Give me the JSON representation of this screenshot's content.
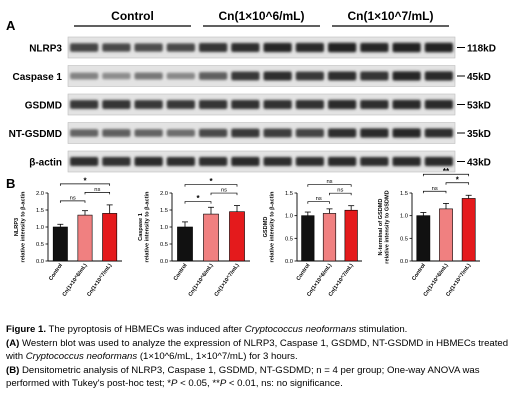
{
  "panel_a": {
    "label": "A",
    "groups": [
      "Control",
      "Cn(1×10^6/mL)",
      "Cn(1×10^7/mL)"
    ],
    "lanes_per_group": 4,
    "blots": [
      {
        "protein": "NLRP3",
        "mw": "118kD",
        "intensity": [
          0.75,
          0.72,
          0.7,
          0.72,
          0.82,
          0.85,
          0.88,
          0.86,
          0.9,
          0.88,
          0.92,
          0.9
        ]
      },
      {
        "protein": "Caspase 1",
        "mw": "45kD",
        "intensity": [
          0.45,
          0.4,
          0.5,
          0.42,
          0.62,
          0.8,
          0.85,
          0.8,
          0.85,
          0.82,
          0.88,
          0.86
        ]
      },
      {
        "protein": "GSDMD",
        "mw": "53kD",
        "intensity": [
          0.8,
          0.82,
          0.8,
          0.8,
          0.82,
          0.84,
          0.83,
          0.84,
          0.86,
          0.85,
          0.87,
          0.86
        ]
      },
      {
        "protein": "NT-GSDMD",
        "mw": "35kD",
        "intensity": [
          0.6,
          0.62,
          0.6,
          0.55,
          0.72,
          0.8,
          0.78,
          0.75,
          0.85,
          0.86,
          0.88,
          0.85
        ]
      },
      {
        "protein": "β-actin",
        "mw": "43kD",
        "intensity": [
          0.85,
          0.84,
          0.86,
          0.85,
          0.85,
          0.86,
          0.85,
          0.85,
          0.86,
          0.85,
          0.86,
          0.86
        ]
      }
    ]
  },
  "panel_b": {
    "label": "B"
  },
  "chart_data": [
    {
      "type": "bar",
      "ylabel": "NLRP3\nrelative intensity to β-actin",
      "categories": [
        "Control",
        "Cn(1×10^6/mL)",
        "Cn(1×10^7/mL)"
      ],
      "values": [
        1.0,
        1.35,
        1.4
      ],
      "errors": [
        0.08,
        0.13,
        0.25
      ],
      "colors": [
        "#111111",
        "#f08080",
        "#e41a1c"
      ],
      "ylim": [
        0,
        2.0
      ],
      "yticks": [
        "0.0",
        "0.5",
        "1.0",
        "1.5",
        "2.0"
      ],
      "significance": [
        {
          "from": 0,
          "to": 1,
          "label": "ns",
          "level": 1
        },
        {
          "from": 1,
          "to": 2,
          "label": "ns",
          "level": 2
        },
        {
          "from": 0,
          "to": 2,
          "label": "*",
          "level": 3
        }
      ]
    },
    {
      "type": "bar",
      "ylabel": "Caspase 1\nrelative intensity to β-actin",
      "categories": [
        "Control",
        "Cn(1×10^6/mL)",
        "Cn(1×10^7/mL)"
      ],
      "values": [
        1.0,
        1.38,
        1.45
      ],
      "errors": [
        0.15,
        0.2,
        0.18
      ],
      "colors": [
        "#111111",
        "#f08080",
        "#e41a1c"
      ],
      "ylim": [
        0,
        2.0
      ],
      "yticks": [
        "0.0",
        "0.5",
        "1.0",
        "1.5",
        "2.0"
      ],
      "significance": [
        {
          "from": 0,
          "to": 1,
          "label": "*",
          "level": 1
        },
        {
          "from": 1,
          "to": 2,
          "label": "ns",
          "level": 2
        },
        {
          "from": 0,
          "to": 2,
          "label": "*",
          "level": 3
        }
      ]
    },
    {
      "type": "bar",
      "ylabel": "GSDMD\nrelative intensity to β-actin",
      "categories": [
        "Control",
        "Cn(1×10^6/mL)",
        "Cn(1×10^7/mL)"
      ],
      "values": [
        1.0,
        1.05,
        1.12
      ],
      "errors": [
        0.08,
        0.1,
        0.1
      ],
      "colors": [
        "#111111",
        "#f08080",
        "#e41a1c"
      ],
      "ylim": [
        0,
        1.5
      ],
      "yticks": [
        "0.0",
        "0.5",
        "1.0",
        "1.5"
      ],
      "significance": [
        {
          "from": 0,
          "to": 1,
          "label": "ns",
          "level": 1
        },
        {
          "from": 1,
          "to": 2,
          "label": "ns",
          "level": 2
        },
        {
          "from": 0,
          "to": 2,
          "label": "ns",
          "level": 3
        }
      ]
    },
    {
      "type": "bar",
      "ylabel": "N-terminal of GSDMD\nrelative intensity to GSDMD",
      "categories": [
        "Control",
        "Cn(1×10^6/mL)",
        "Cn(1×10^7/mL)"
      ],
      "values": [
        1.0,
        1.15,
        1.38
      ],
      "errors": [
        0.07,
        0.12,
        0.07
      ],
      "colors": [
        "#111111",
        "#f08080",
        "#e41a1c"
      ],
      "ylim": [
        0,
        1.5
      ],
      "yticks": [
        "0.0",
        "0.5",
        "1.0",
        "1.5"
      ],
      "significance": [
        {
          "from": 0,
          "to": 1,
          "label": "ns",
          "level": 1
        },
        {
          "from": 1,
          "to": 2,
          "label": "*",
          "level": 2
        },
        {
          "from": 0,
          "to": 2,
          "label": "**",
          "level": 3
        }
      ]
    }
  ],
  "caption": {
    "title_label": "Figure 1.",
    "title_text_1": " The pyroptosis of HBMECs was induced after ",
    "title_italic": "Cryptococcus neoformans",
    "title_text_2": " stimulation.",
    "a_label": "(A)",
    "a_text_1": " Western blot was used to analyze the expression of NLRP3,  Caspase 1, GSDMD, NT-GSDMD in HBMECs treated with ",
    "a_italic": "Cryptococcus neoformans",
    "a_text_2": " (1×10^6/mL, 1×10^7/mL) for 3 hours.",
    "b_label": "(B)",
    "b_text_1": " Densitometric analysis of NLRP3,  Caspase 1, GSDMD, NT-GSDMD; n = 4 per group; One-way ANOVA was performed with Tukey's post-hoc test; *",
    "b_p1": "P",
    "b_text_2": " < 0.05, **",
    "b_p2": "P",
    "b_text_3": " < 0.01, ns: no significance."
  }
}
